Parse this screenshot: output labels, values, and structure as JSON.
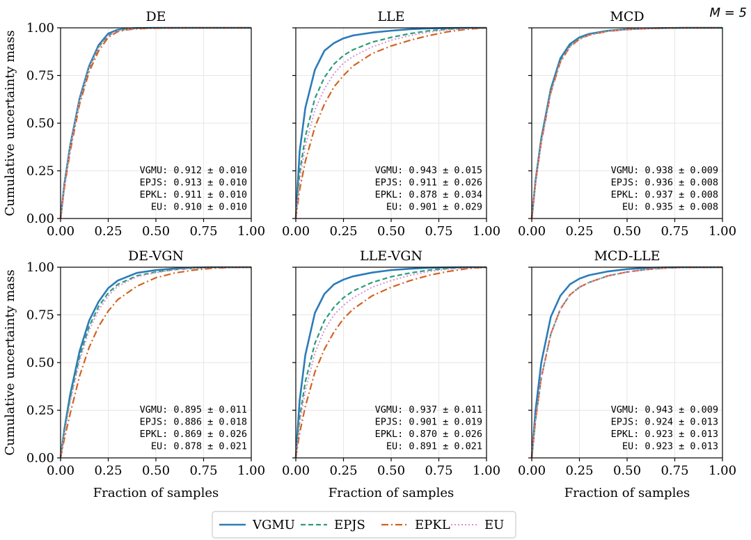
{
  "figure": {
    "corner_label": "M = 5",
    "legend_placement": "bottom-center",
    "colors": {
      "VGMU": "#2b7bb9",
      "EPJS": "#2a9d74",
      "EPKL": "#d2621f",
      "EU": "#d98fd6",
      "grid": "#e6e6e6",
      "axis": "#000000"
    },
    "legend": [
      {
        "name": "VGMU",
        "key": "VGMU"
      },
      {
        "name": "EPJS",
        "key": "EPJS"
      },
      {
        "name": "EPKL",
        "key": "EPKL"
      },
      {
        "name": "EU",
        "key": "EU"
      }
    ]
  },
  "chart_data": [
    {
      "type": "line",
      "title": "DE",
      "xlabel": "",
      "ylabel": "Cumulative uncertainty mass",
      "xlim": [
        0,
        1
      ],
      "ylim": [
        0,
        1
      ],
      "xticks": [
        "0.00",
        "0.25",
        "0.50",
        "0.75",
        "1.00"
      ],
      "yticks": [
        "0.00",
        "0.25",
        "0.50",
        "0.75",
        "1.00"
      ],
      "grid": true,
      "x": [
        0,
        0.02,
        0.05,
        0.1,
        0.15,
        0.2,
        0.25,
        0.3,
        0.35,
        0.4,
        0.5,
        0.6,
        0.7,
        0.8,
        1.0
      ],
      "series": [
        {
          "name": "VGMU",
          "values": [
            0,
            0.18,
            0.38,
            0.63,
            0.8,
            0.91,
            0.97,
            0.99,
            0.996,
            0.999,
            1,
            1,
            1,
            1,
            1
          ]
        },
        {
          "name": "EPJS",
          "values": [
            0,
            0.17,
            0.37,
            0.62,
            0.79,
            0.9,
            0.96,
            0.985,
            0.993,
            0.997,
            0.999,
            1,
            1,
            1,
            1
          ]
        },
        {
          "name": "EPKL",
          "values": [
            0,
            0.16,
            0.35,
            0.6,
            0.77,
            0.88,
            0.95,
            0.98,
            0.99,
            0.995,
            0.998,
            0.999,
            1,
            1,
            1
          ]
        },
        {
          "name": "EU",
          "values": [
            0,
            0.17,
            0.37,
            0.62,
            0.79,
            0.9,
            0.96,
            0.985,
            0.993,
            0.997,
            0.999,
            1,
            1,
            1,
            1
          ]
        }
      ],
      "annotations": [
        "VGMU: 0.912 ± 0.010",
        "EPJS: 0.913 ± 0.010",
        "EPKL: 0.911 ± 0.010",
        "EU: 0.910 ± 0.010"
      ]
    },
    {
      "type": "line",
      "title": "LLE",
      "xlabel": "",
      "ylabel": "",
      "xlim": [
        0,
        1
      ],
      "ylim": [
        0,
        1
      ],
      "xticks": [
        "0.00",
        "0.25",
        "0.50",
        "0.75",
        "1.00"
      ],
      "yticks": [
        "",
        "",
        "",
        "",
        ""
      ],
      "grid": true,
      "x": [
        0,
        0.02,
        0.05,
        0.1,
        0.15,
        0.2,
        0.25,
        0.3,
        0.4,
        0.5,
        0.6,
        0.7,
        0.8,
        0.9,
        1.0
      ],
      "series": [
        {
          "name": "VGMU",
          "values": [
            0,
            0.35,
            0.58,
            0.78,
            0.88,
            0.92,
            0.945,
            0.96,
            0.975,
            0.985,
            0.993,
            0.997,
            0.999,
            1,
            1
          ]
        },
        {
          "name": "EPJS",
          "values": [
            0,
            0.24,
            0.43,
            0.63,
            0.74,
            0.81,
            0.855,
            0.885,
            0.925,
            0.95,
            0.97,
            0.985,
            0.993,
            0.998,
            1
          ]
        },
        {
          "name": "EPKL",
          "values": [
            0,
            0.15,
            0.3,
            0.48,
            0.6,
            0.69,
            0.75,
            0.8,
            0.865,
            0.905,
            0.935,
            0.96,
            0.98,
            0.993,
            1
          ]
        },
        {
          "name": "EU",
          "values": [
            0,
            0.2,
            0.38,
            0.57,
            0.68,
            0.76,
            0.815,
            0.85,
            0.9,
            0.935,
            0.96,
            0.978,
            0.99,
            0.997,
            1
          ]
        }
      ],
      "annotations": [
        "VGMU: 0.943 ± 0.015",
        "EPJS: 0.911 ± 0.026",
        "EPKL: 0.878 ± 0.034",
        "EU: 0.901 ± 0.029"
      ]
    },
    {
      "type": "line",
      "title": "MCD",
      "xlabel": "",
      "ylabel": "",
      "xlim": [
        0,
        1
      ],
      "ylim": [
        0,
        1
      ],
      "xticks": [
        "0.00",
        "0.25",
        "0.50",
        "0.75",
        "1.00"
      ],
      "yticks": [
        "",
        "",
        "",
        "",
        ""
      ],
      "grid": true,
      "x": [
        0,
        0.02,
        0.05,
        0.1,
        0.15,
        0.2,
        0.25,
        0.3,
        0.4,
        0.5,
        0.6,
        0.7,
        0.8,
        1.0
      ],
      "series": [
        {
          "name": "VGMU",
          "values": [
            0,
            0.2,
            0.42,
            0.68,
            0.84,
            0.915,
            0.95,
            0.968,
            0.985,
            0.993,
            0.997,
            0.999,
            1,
            1
          ]
        },
        {
          "name": "EPJS",
          "values": [
            0,
            0.19,
            0.41,
            0.67,
            0.83,
            0.905,
            0.945,
            0.965,
            0.983,
            0.992,
            0.996,
            0.999,
            1,
            1
          ]
        },
        {
          "name": "EPKL",
          "values": [
            0,
            0.19,
            0.4,
            0.66,
            0.82,
            0.9,
            0.94,
            0.962,
            0.982,
            0.991,
            0.996,
            0.999,
            1,
            1
          ]
        },
        {
          "name": "EU",
          "values": [
            0,
            0.19,
            0.4,
            0.66,
            0.82,
            0.9,
            0.94,
            0.962,
            0.982,
            0.991,
            0.996,
            0.999,
            1,
            1
          ]
        }
      ],
      "annotations": [
        "VGMU: 0.938 ± 0.009",
        "EPJS: 0.936 ± 0.008",
        "EPKL: 0.937 ± 0.008",
        "EU: 0.935 ± 0.008"
      ]
    },
    {
      "type": "line",
      "title": "DE-VGN",
      "xlabel": "Fraction of samples",
      "ylabel": "Cumulative uncertainty mass",
      "xlim": [
        0,
        1
      ],
      "ylim": [
        0,
        1
      ],
      "xticks": [
        "0.00",
        "0.25",
        "0.50",
        "0.75",
        "1.00"
      ],
      "yticks": [
        "0.00",
        "0.25",
        "0.50",
        "0.75",
        "1.00"
      ],
      "grid": true,
      "x": [
        0,
        0.02,
        0.05,
        0.1,
        0.15,
        0.2,
        0.25,
        0.3,
        0.4,
        0.5,
        0.6,
        0.7,
        0.8,
        0.9,
        1.0
      ],
      "series": [
        {
          "name": "VGMU",
          "values": [
            0,
            0.15,
            0.33,
            0.56,
            0.72,
            0.82,
            0.89,
            0.93,
            0.97,
            0.985,
            0.993,
            0.998,
            1,
            1,
            1
          ]
        },
        {
          "name": "EPJS",
          "values": [
            0,
            0.14,
            0.31,
            0.53,
            0.69,
            0.795,
            0.865,
            0.91,
            0.955,
            0.975,
            0.988,
            0.995,
            0.999,
            1,
            1
          ]
        },
        {
          "name": "EPKL",
          "values": [
            0,
            0.1,
            0.23,
            0.43,
            0.58,
            0.69,
            0.77,
            0.83,
            0.9,
            0.945,
            0.97,
            0.985,
            0.995,
            0.999,
            1
          ]
        },
        {
          "name": "EU",
          "values": [
            0,
            0.13,
            0.29,
            0.51,
            0.67,
            0.775,
            0.85,
            0.9,
            0.95,
            0.972,
            0.986,
            0.995,
            0.999,
            1,
            1
          ]
        }
      ],
      "annotations": [
        "VGMU: 0.895 ± 0.011",
        "EPJS: 0.886 ± 0.018",
        "EPKL: 0.869 ± 0.026",
        "EU: 0.878 ± 0.021"
      ]
    },
    {
      "type": "line",
      "title": "LLE-VGN",
      "xlabel": "Fraction of samples",
      "ylabel": "",
      "xlim": [
        0,
        1
      ],
      "ylim": [
        0,
        1
      ],
      "xticks": [
        "0.00",
        "0.25",
        "0.50",
        "0.75",
        "1.00"
      ],
      "yticks": [
        "",
        "",
        "",
        "",
        ""
      ],
      "grid": true,
      "x": [
        0,
        0.02,
        0.05,
        0.1,
        0.15,
        0.2,
        0.25,
        0.3,
        0.4,
        0.5,
        0.6,
        0.7,
        0.8,
        0.9,
        1.0
      ],
      "series": [
        {
          "name": "VGMU",
          "values": [
            0,
            0.3,
            0.54,
            0.76,
            0.86,
            0.91,
            0.935,
            0.952,
            0.972,
            0.985,
            0.992,
            0.997,
            0.999,
            1,
            1
          ]
        },
        {
          "name": "EPJS",
          "values": [
            0,
            0.21,
            0.4,
            0.6,
            0.72,
            0.79,
            0.84,
            0.875,
            0.92,
            0.95,
            0.97,
            0.985,
            0.994,
            0.999,
            1
          ]
        },
        {
          "name": "EPKL",
          "values": [
            0,
            0.13,
            0.27,
            0.45,
            0.57,
            0.66,
            0.73,
            0.78,
            0.85,
            0.895,
            0.93,
            0.958,
            0.978,
            0.993,
            1
          ]
        },
        {
          "name": "EU",
          "values": [
            0,
            0.18,
            0.35,
            0.55,
            0.67,
            0.75,
            0.8,
            0.84,
            0.895,
            0.93,
            0.958,
            0.978,
            0.99,
            0.997,
            1
          ]
        }
      ],
      "annotations": [
        "VGMU: 0.937 ± 0.011",
        "EPJS: 0.901 ± 0.019",
        "EPKL: 0.870 ± 0.026",
        "EU: 0.891 ± 0.021"
      ]
    },
    {
      "type": "line",
      "title": "MCD-LLE",
      "xlabel": "Fraction of samples",
      "ylabel": "",
      "xlim": [
        0,
        1
      ],
      "ylim": [
        0,
        1
      ],
      "xticks": [
        "0.00",
        "0.25",
        "0.50",
        "0.75",
        "1.00"
      ],
      "yticks": [
        "",
        "",
        "",
        "",
        ""
      ],
      "grid": true,
      "x": [
        0,
        0.02,
        0.05,
        0.1,
        0.15,
        0.2,
        0.25,
        0.3,
        0.4,
        0.5,
        0.6,
        0.7,
        0.8,
        1.0
      ],
      "series": [
        {
          "name": "VGMU",
          "values": [
            0,
            0.25,
            0.5,
            0.74,
            0.85,
            0.91,
            0.94,
            0.958,
            0.978,
            0.99,
            0.996,
            0.999,
            1,
            1
          ]
        },
        {
          "name": "EPJS",
          "values": [
            0,
            0.2,
            0.42,
            0.65,
            0.78,
            0.855,
            0.895,
            0.92,
            0.955,
            0.975,
            0.988,
            0.996,
            0.999,
            1
          ]
        },
        {
          "name": "EPKL",
          "values": [
            0,
            0.2,
            0.42,
            0.65,
            0.78,
            0.855,
            0.895,
            0.92,
            0.955,
            0.975,
            0.988,
            0.996,
            0.999,
            1
          ]
        },
        {
          "name": "EU",
          "values": [
            0,
            0.2,
            0.42,
            0.65,
            0.78,
            0.855,
            0.895,
            0.92,
            0.955,
            0.975,
            0.988,
            0.996,
            0.999,
            1
          ]
        }
      ],
      "annotations": [
        "VGMU: 0.943 ± 0.009",
        "EPJS: 0.924 ± 0.013",
        "EPKL: 0.923 ± 0.013",
        "EU: 0.923 ± 0.013"
      ]
    }
  ]
}
